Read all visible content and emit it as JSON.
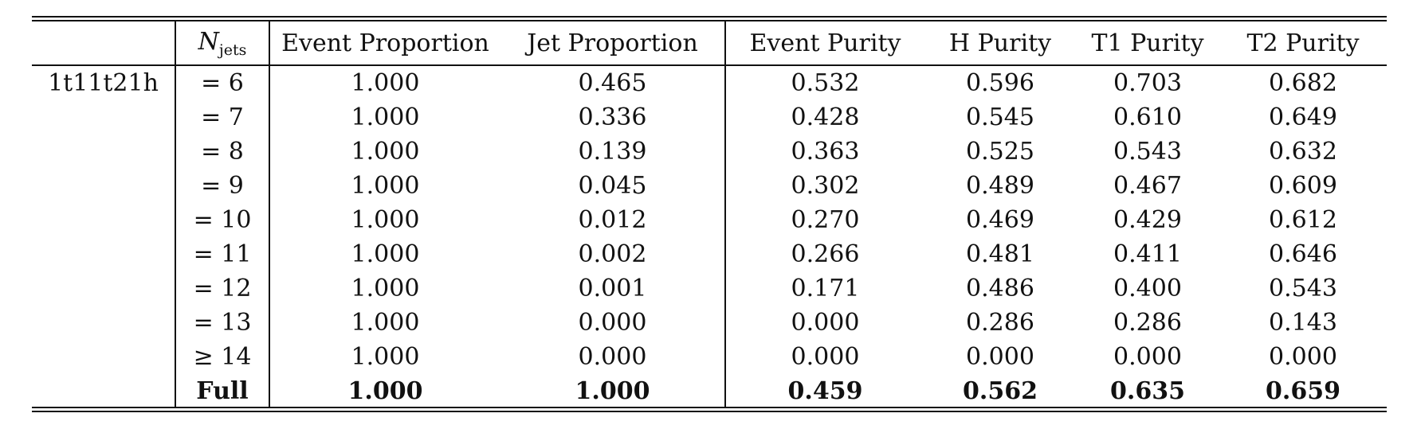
{
  "table": {
    "headers": {
      "njets": "N",
      "njets_sub": "jets",
      "columns": [
        "Event Proportion",
        "Jet Proportion",
        "Event Purity",
        "H Purity",
        "T1 Purity",
        "T2 Purity"
      ]
    },
    "group_label": "1t11t21h",
    "rows": [
      {
        "njets": "= 6",
        "values": [
          "1.000",
          "0.465",
          "0.532",
          "0.596",
          "0.703",
          "0.682"
        ]
      },
      {
        "njets": "= 7",
        "values": [
          "1.000",
          "0.336",
          "0.428",
          "0.545",
          "0.610",
          "0.649"
        ]
      },
      {
        "njets": "= 8",
        "values": [
          "1.000",
          "0.139",
          "0.363",
          "0.525",
          "0.543",
          "0.632"
        ]
      },
      {
        "njets": "= 9",
        "values": [
          "1.000",
          "0.045",
          "0.302",
          "0.489",
          "0.467",
          "0.609"
        ]
      },
      {
        "njets": "= 10",
        "values": [
          "1.000",
          "0.012",
          "0.270",
          "0.469",
          "0.429",
          "0.612"
        ]
      },
      {
        "njets": "= 11",
        "values": [
          "1.000",
          "0.002",
          "0.266",
          "0.481",
          "0.411",
          "0.646"
        ]
      },
      {
        "njets": "= 12",
        "values": [
          "1.000",
          "0.001",
          "0.171",
          "0.486",
          "0.400",
          "0.543"
        ]
      },
      {
        "njets": "= 13",
        "values": [
          "1.000",
          "0.000",
          "0.000",
          "0.286",
          "0.286",
          "0.143"
        ]
      },
      {
        "njets": "≥ 14",
        "values": [
          "1.000",
          "0.000",
          "0.000",
          "0.000",
          "0.000",
          "0.000"
        ]
      }
    ],
    "full_row": {
      "njets": "Full",
      "values": [
        "1.000",
        "1.000",
        "0.459",
        "0.562",
        "0.635",
        "0.659"
      ]
    }
  }
}
